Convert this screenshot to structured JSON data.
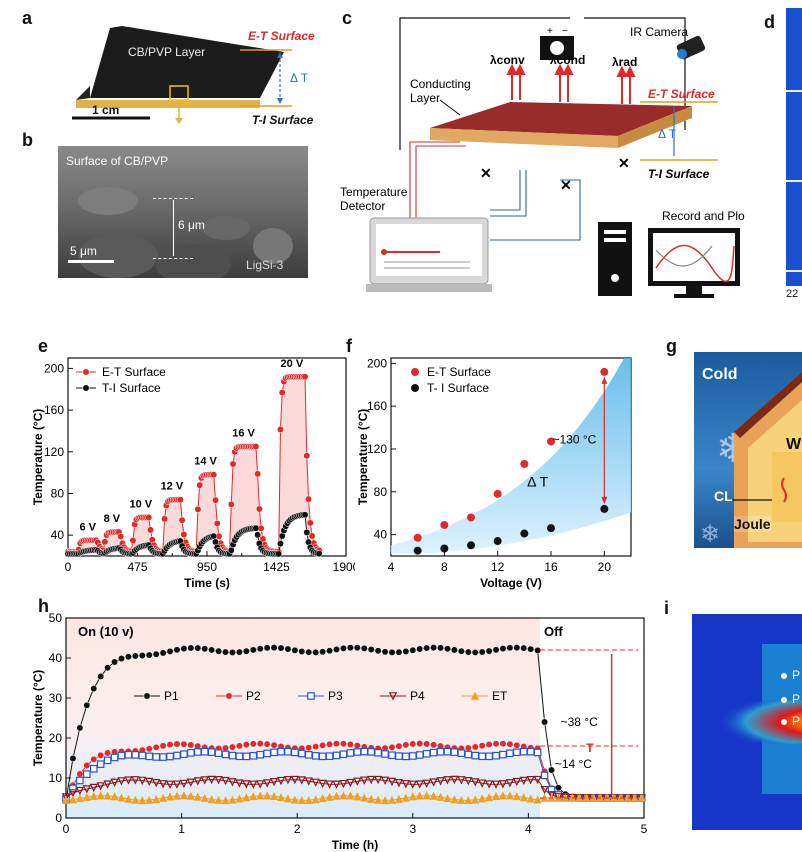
{
  "panels": {
    "a": {
      "letter": "a",
      "layer_label": "CB/PVP Layer",
      "et_label": "E-T Surface",
      "ti_label": "T-I Surface",
      "delta_t": "Δ T",
      "scale_bar": "1 cm"
    },
    "b": {
      "letter": "b",
      "surface_label": "Surface of CB/PVP",
      "thickness": "6 μm",
      "scale_bar": "5 μm",
      "sample": "LigSi-3"
    },
    "c": {
      "letter": "c",
      "conducting_layer": [
        "Conducting",
        "Layer"
      ],
      "ir_camera": "IR Camera",
      "lambda_conv": "λconv",
      "lambda_cond": "λcond",
      "lambda_rad": "λrad",
      "et_label": "E-T Surface",
      "ti_label": "T-I Surface",
      "delta_t": "Δ T",
      "detector": [
        "Temperature",
        "Detector"
      ],
      "record": "Record and Plot",
      "plus": "+",
      "minus": "−"
    },
    "d": {
      "letter": "d",
      "tick_fragment": "22"
    },
    "g": {
      "letter": "g",
      "cold": "Cold",
      "cl": "CL",
      "joule": "Joule",
      "w": "W"
    },
    "i": {
      "letter": "i",
      "labels": [
        "P",
        "P",
        "P"
      ]
    }
  },
  "chart_data": [
    {
      "panel": "e",
      "type": "line",
      "xlabel": "Time (s)",
      "ylabel": "Temperature (°C)",
      "xlim": [
        0,
        1900
      ],
      "ylim": [
        20,
        210
      ],
      "x_ticks": [
        0,
        475,
        950,
        1425,
        1900
      ],
      "y_ticks": [
        40,
        80,
        120,
        160,
        200
      ],
      "x_minor_ticks": [
        237.5,
        712.5,
        1187.5,
        1662.5
      ],
      "legend_position": "top-left",
      "series": [
        {
          "name": "E-T Surface",
          "color": "#e02a2a",
          "marker": "circle"
        },
        {
          "name": "T-I Surface",
          "color": "#111111",
          "marker": "circle"
        }
      ],
      "voltage_annotations": [
        "6 V",
        "8 V",
        "10 V",
        "12 V",
        "14 V",
        "16 V",
        "20 V"
      ],
      "cycles": [
        {
          "voltage": "6 V",
          "on": 70,
          "off": 200,
          "et_peak": 35,
          "ti_peak": 26
        },
        {
          "voltage": "8 V",
          "on": 245,
          "off": 355,
          "et_peak": 43,
          "ti_peak": 28
        },
        {
          "voltage": "10 V",
          "on": 440,
          "off": 555,
          "et_peak": 57,
          "ti_peak": 31
        },
        {
          "voltage": "12 V",
          "on": 650,
          "off": 770,
          "et_peak": 74,
          "ti_peak": 35
        },
        {
          "voltage": "14 V",
          "on": 880,
          "off": 1000,
          "et_peak": 98,
          "ti_peak": 40
        },
        {
          "voltage": "16 V",
          "on": 1110,
          "off": 1290,
          "et_peak": 125,
          "ti_peak": 47
        },
        {
          "voltage": "20 V",
          "on": 1440,
          "off": 1620,
          "et_peak": 192,
          "ti_peak": 60
        }
      ],
      "baseline": {
        "et": 24,
        "ti": 22
      },
      "end_time": 1720
    },
    {
      "panel": "f",
      "type": "scatter",
      "xlabel": "Voltage (V)",
      "ylabel": "Temperature (°C)",
      "xlim": [
        4,
        22
      ],
      "ylim": [
        20,
        205
      ],
      "x_ticks": [
        4,
        8,
        12,
        16,
        20
      ],
      "y_ticks": [
        40,
        80,
        120,
        160,
        200
      ],
      "legend_position": "top-left",
      "series": [
        {
          "name": "E-T Surface",
          "color": "#e02a2a",
          "x": [
            6,
            8,
            10,
            12,
            14,
            16,
            20
          ],
          "y": [
            37,
            49,
            56,
            78,
            106,
            127,
            192
          ]
        },
        {
          "name": "T- I Surface",
          "color": "#111111",
          "x": [
            6,
            8,
            10,
            12,
            14,
            16,
            20
          ],
          "y": [
            25,
            27,
            30,
            34,
            41,
            46,
            64
          ]
        }
      ],
      "band_label": "Δ T",
      "annotation": "~130 °C"
    },
    {
      "panel": "h",
      "type": "line",
      "xlabel": "Time (h)",
      "ylabel": "Temperature (°C)",
      "xlim": [
        0,
        5
      ],
      "ylim": [
        0,
        50
      ],
      "x_ticks": [
        0,
        1,
        2,
        3,
        4,
        5
      ],
      "y_ticks": [
        0,
        10,
        20,
        30,
        40,
        50
      ],
      "on_label": "On (10 v)",
      "off_label": "Off",
      "off_time": 4.1,
      "annotations": [
        "~38 °C",
        "~14 °C"
      ],
      "t_label": "T",
      "legend_position": "middle",
      "series": [
        {
          "name": "P1",
          "color": "#111111",
          "marker": "circle",
          "plateau": 42,
          "rise": 0.18
        },
        {
          "name": "P2",
          "color": "#e02a2a",
          "marker": "circle",
          "plateau": 18,
          "rise": 0.2
        },
        {
          "name": "P3",
          "color": "#2255dd",
          "marker": "square",
          "plateau": 16,
          "rise": 0.2
        },
        {
          "name": "P4",
          "color": "#8b1a1a",
          "marker": "triangle-down",
          "plateau": 9,
          "rise": 0.15
        },
        {
          "name": "ET",
          "color": "#f0a020",
          "marker": "triangle-up",
          "plateau": 5,
          "rise": 0.05
        }
      ],
      "final_temp": 5
    }
  ]
}
